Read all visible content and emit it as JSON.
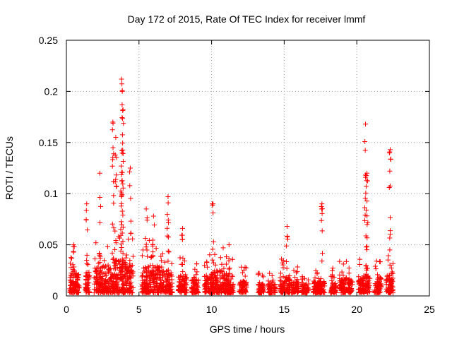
{
  "chart_data": {
    "type": "scatter",
    "title": "Day 172 of 2015, Rate Of TEC Index for receiver lmmf",
    "xlabel": "GPS time / hours",
    "ylabel": "ROTI / TECUs",
    "xlim": [
      0,
      25
    ],
    "ylim": [
      0,
      0.25
    ],
    "xticks": [
      0,
      5,
      10,
      15,
      20,
      25
    ],
    "yticks": [
      0,
      0.05,
      0.1,
      0.15,
      0.2,
      0.25
    ],
    "xtick_labels": [
      "0",
      "5",
      "10",
      "15",
      "20",
      "25"
    ],
    "ytick_labels": [
      "0",
      "0.05",
      "0.1",
      "0.15",
      "0.2",
      "0.25"
    ],
    "grid": true,
    "marker": "+",
    "color": "#ff0000",
    "series": [
      {
        "name": "ROTI",
        "peaks": [
          [
            0.5,
            0.05
          ],
          [
            1.4,
            0.09
          ],
          [
            2.3,
            0.12
          ],
          [
            3.2,
            0.17
          ],
          [
            3.4,
            0.155
          ],
          [
            3.8,
            0.212
          ],
          [
            3.85,
            0.2
          ],
          [
            3.9,
            0.182
          ],
          [
            4.4,
            0.125
          ],
          [
            5.5,
            0.085
          ],
          [
            6.0,
            0.078
          ],
          [
            7.0,
            0.097
          ],
          [
            8.0,
            0.066
          ],
          [
            10.1,
            0.09
          ],
          [
            11.2,
            0.05
          ],
          [
            15.2,
            0.068
          ],
          [
            17.6,
            0.09
          ],
          [
            20.6,
            0.168
          ],
          [
            20.7,
            0.12
          ],
          [
            22.3,
            0.143
          ]
        ],
        "segments": [
          [
            0.2,
            0.9,
            0.025
          ],
          [
            1.3,
            1.6,
            0.02
          ],
          [
            1.9,
            2.6,
            0.028
          ],
          [
            2.6,
            3.3,
            0.03
          ],
          [
            3.3,
            4.1,
            0.035
          ],
          [
            4.1,
            4.6,
            0.03
          ],
          [
            5.2,
            5.9,
            0.03
          ],
          [
            5.9,
            6.6,
            0.03
          ],
          [
            6.6,
            7.3,
            0.025
          ],
          [
            7.7,
            8.3,
            0.02
          ],
          [
            8.6,
            9.1,
            0.018
          ],
          [
            9.5,
            10.1,
            0.022
          ],
          [
            10.1,
            10.8,
            0.025
          ],
          [
            10.8,
            11.5,
            0.022
          ],
          [
            11.9,
            12.4,
            0.015
          ],
          [
            13.2,
            13.6,
            0.012
          ],
          [
            13.9,
            14.4,
            0.012
          ],
          [
            14.7,
            15.4,
            0.02
          ],
          [
            15.5,
            16.0,
            0.015
          ],
          [
            16.2,
            16.7,
            0.012
          ],
          [
            17.0,
            17.8,
            0.015
          ],
          [
            18.2,
            18.6,
            0.015
          ],
          [
            18.8,
            19.3,
            0.018
          ],
          [
            19.4,
            19.7,
            0.015
          ],
          [
            20.1,
            20.9,
            0.02
          ],
          [
            21.2,
            21.7,
            0.018
          ],
          [
            22.0,
            22.5,
            0.022
          ]
        ]
      }
    ]
  }
}
